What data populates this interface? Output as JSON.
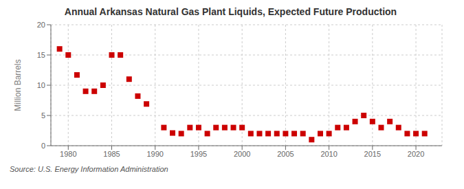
{
  "chart_data": {
    "type": "scatter",
    "title": "Annual Arkansas Natural Gas Plant Liquids, Expected Future Production",
    "ylabel": "Million Barrels",
    "annotations": [
      "Source: U.S. Energy Information Administration"
    ],
    "x": [
      1979,
      1980,
      1981,
      1982,
      1983,
      1984,
      1985,
      1986,
      1987,
      1988,
      1989,
      1991,
      1992,
      1993,
      1994,
      1995,
      1996,
      1997,
      1998,
      1999,
      2000,
      2001,
      2002,
      2003,
      2004,
      2005,
      2006,
      2007,
      2008,
      2009,
      2010,
      2011,
      2012,
      2013,
      2014,
      2015,
      2016,
      2017,
      2018,
      2019,
      2020,
      2021
    ],
    "values": [
      16.0,
      15.0,
      11.7,
      9.0,
      9.0,
      10.0,
      15.0,
      15.0,
      11.0,
      8.2,
      6.9,
      3.0,
      2.1,
      2.0,
      3.0,
      3.0,
      2.0,
      3.0,
      3.0,
      3.0,
      3.0,
      2.0,
      2.0,
      2.0,
      2.0,
      2.0,
      2.0,
      2.0,
      1.0,
      2.0,
      2.0,
      3.0,
      3.0,
      4.0,
      5.0,
      4.0,
      3.0,
      4.0,
      3.0,
      2.0,
      2.0,
      2.0
    ],
    "color": "#cc0000",
    "marker": "square",
    "xlim": [
      1978,
      2023
    ],
    "ylim": [
      0,
      20
    ],
    "xticks": [
      1980,
      1985,
      1990,
      1995,
      2000,
      2005,
      2010,
      2015,
      2020
    ],
    "yticks": [
      0,
      5,
      10,
      15,
      20
    ],
    "grid": true
  }
}
